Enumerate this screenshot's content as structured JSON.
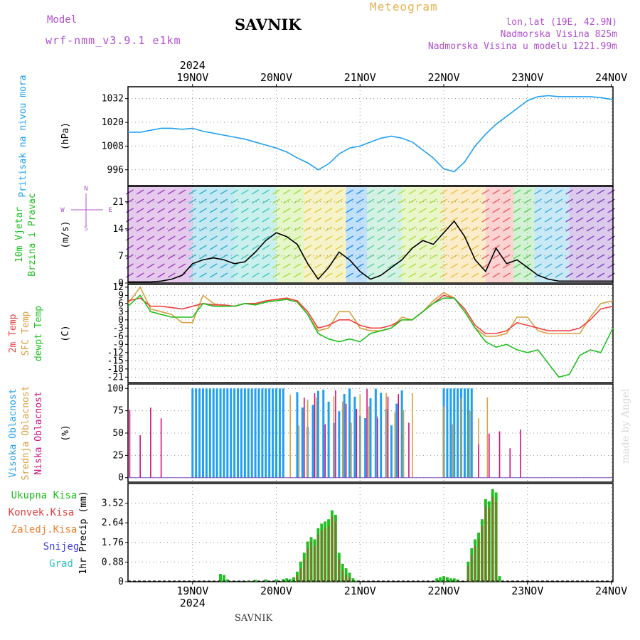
{
  "header": {
    "model_label": "Model",
    "model_name": "wrf-nmm_v3.9.1  e1km",
    "station": "SAVNIK",
    "title": "Meteogram",
    "lonlat": "lon,lat (19E, 42.9N)",
    "altitude": "Nadmorska Visina 825m",
    "model_altitude": "Nadmorska Visina u modelu 1221.99m",
    "footer_station": "SAVNIK",
    "credit": "made by Angel"
  },
  "colors": {
    "purple": "#b050d0",
    "orange": "#e8b050",
    "pressure": "#20a0f0",
    "temp2m": "#f04040",
    "sfc": "#d8a040",
    "dew": "#20c020",
    "high_cloud": "#20a0f0",
    "mid_cloud": "#d8a040",
    "low_cloud": "#d01080",
    "total_precip": "#20c020",
    "conv_precip": "#e04040",
    "frz_precip": "#f08030",
    "snow": "#4040e0",
    "hail": "#30c0c0"
  },
  "chart_data": {
    "type": "line",
    "x_axis": {
      "top_year": "2024",
      "bottom_year": "2024",
      "days": [
        "19NOV",
        "20NOV",
        "21NOV",
        "22NOV",
        "23NOV",
        "24NOV"
      ],
      "range_hours": [
        -6.5,
        132.5
      ],
      "tick_hours": [
        12,
        36,
        60,
        84,
        108,
        132
      ]
    },
    "panels": [
      {
        "id": "pressure",
        "ylabel": "(hPa)",
        "side_label": [
          "Pritisak na nivou mora"
        ],
        "ylim": [
          988,
          1038
        ],
        "yticks": [
          996,
          1008,
          1020,
          1032
        ],
        "series": [
          {
            "name": "pressure",
            "x": [
              -6.5,
              -3,
              0,
              3,
              6,
              9,
              12,
              15,
              18,
              21,
              24,
              27,
              30,
              33,
              36,
              39,
              42,
              45,
              48,
              51,
              54,
              57,
              60,
              63,
              66,
              69,
              72,
              75,
              78,
              81,
              84,
              87,
              90,
              93,
              96,
              99,
              102,
              105,
              108,
              111,
              114,
              117,
              120,
              123,
              126,
              129,
              132.5
            ],
            "y": [
              1015,
              1015,
              1016,
              1017,
              1017,
              1016.5,
              1017,
              1015.5,
              1014.5,
              1013.5,
              1012.5,
              1011.5,
              1010,
              1008.5,
              1007,
              1005,
              1002,
              999.5,
              996,
              999,
              1004,
              1007,
              1008,
              1010,
              1012,
              1013,
              1012,
              1010,
              1006,
              1002,
              996.5,
              995,
              1000,
              1008,
              1014,
              1019,
              1023,
              1027,
              1031,
              1033,
              1033.5,
              1033,
              1033,
              1033,
              1033,
              1032.5,
              1031.5
            ]
          }
        ]
      },
      {
        "id": "wind",
        "ylabel": "(m/s)",
        "side_label": [
          "10m Vjetar",
          "Brzina i Pravac"
        ],
        "compass": [
          "N",
          "E",
          "S",
          "W"
        ],
        "ylim": [
          0,
          25
        ],
        "yticks": [
          0,
          7,
          14,
          21
        ],
        "series": [
          {
            "name": "wind_speed",
            "x": [
              -6.5,
              -3,
              0,
              3,
              6,
              9,
              12,
              15,
              18,
              21,
              24,
              27,
              30,
              33,
              36,
              39,
              42,
              45,
              48,
              51,
              54,
              57,
              60,
              63,
              66,
              69,
              72,
              75,
              78,
              81,
              84,
              87,
              90,
              93,
              96,
              99,
              102,
              105,
              108,
              111,
              114,
              117,
              120,
              123,
              126,
              129,
              132.5
            ],
            "y": [
              0.3,
              0.3,
              0.3,
              0.5,
              1,
              2,
              5,
              6,
              6.5,
              6,
              5,
              5.5,
              8,
              11,
              13,
              12,
              10,
              5,
              1,
              4,
              8,
              6,
              3,
              1,
              2,
              4,
              6,
              9,
              11,
              10,
              13,
              16,
              12,
              6,
              3,
              9,
              5,
              6,
              4,
              2,
              1,
              0.5,
              0.5,
              0.5,
              0.5,
              0.5,
              0.5
            ]
          }
        ]
      },
      {
        "id": "temperature",
        "ylabel": "(C)",
        "side_label": [
          "2m Temp",
          "SFC Temp",
          "dewpt Temp"
        ],
        "ylim": [
          -23,
          13
        ],
        "yticks": [
          -21,
          -18,
          -15,
          -12,
          -9,
          -6,
          -3,
          0,
          3,
          6,
          9,
          12
        ],
        "series": [
          {
            "name": "2m",
            "x": [
              -6.5,
              -3,
              0,
              3,
              6,
              9,
              12,
              15,
              18,
              21,
              24,
              27,
              30,
              33,
              36,
              39,
              42,
              45,
              48,
              51,
              54,
              57,
              60,
              63,
              66,
              69,
              72,
              75,
              78,
              81,
              84,
              87,
              90,
              93,
              96,
              99,
              102,
              105,
              108,
              111,
              114,
              117,
              120,
              123,
              126,
              129,
              132.5
            ],
            "y": [
              7,
              8,
              5,
              5,
              4.5,
              4,
              5,
              6,
              5.5,
              5.5,
              5,
              6,
              6,
              7,
              7.5,
              8,
              7,
              3,
              -3,
              -2,
              0,
              0,
              -2,
              -3,
              -3,
              -2,
              0,
              0,
              3,
              6,
              9,
              8,
              4,
              -2,
              -5,
              -5,
              -4,
              -1,
              -2,
              -3,
              -4,
              -4,
              -4,
              -3,
              0,
              4,
              5
            ]
          },
          {
            "name": "sfc",
            "x": [
              -6.5,
              -3,
              0,
              3,
              6,
              9,
              12,
              15,
              18,
              21,
              24,
              27,
              30,
              33,
              36,
              39,
              42,
              45,
              48,
              51,
              54,
              57,
              60,
              63,
              66,
              69,
              72,
              75,
              78,
              81,
              84,
              87,
              90,
              93,
              96,
              99,
              102,
              105,
              108,
              111,
              114,
              117,
              120,
              123,
              126,
              129,
              132.5
            ],
            "y": [
              6,
              12,
              4,
              3,
              2,
              -1,
              -1,
              9,
              6,
              5,
              5,
              6,
              5.5,
              7,
              7.5,
              8,
              7,
              2,
              -4,
              -3,
              3,
              3,
              -3,
              -4,
              -4,
              -3,
              1,
              0,
              3,
              7,
              10,
              8,
              3,
              -3,
              -6,
              -6,
              -5,
              1,
              1,
              -4,
              -5,
              -5,
              -5,
              -5,
              1,
              6,
              7
            ]
          },
          {
            "name": "dewpoint",
            "x": [
              -6.5,
              -3,
              0,
              3,
              6,
              9,
              12,
              15,
              18,
              21,
              24,
              27,
              30,
              33,
              36,
              39,
              42,
              45,
              48,
              51,
              54,
              57,
              60,
              63,
              66,
              69,
              72,
              75,
              78,
              81,
              84,
              87,
              90,
              93,
              96,
              99,
              102,
              105,
              108,
              111,
              114,
              117,
              120,
              123,
              126,
              129,
              132.5
            ],
            "y": [
              5,
              9,
              3,
              2,
              1,
              1,
              1,
              6,
              5,
              5,
              5,
              6,
              5.5,
              6.5,
              7,
              7.5,
              6.5,
              2,
              -5,
              -7,
              -8,
              -7,
              -8,
              -5,
              -4,
              -3,
              0,
              0,
              3,
              6,
              8,
              8,
              3,
              -3,
              -8,
              -10,
              -9,
              -11,
              -12,
              -11,
              -16,
              -21,
              -20,
              -13,
              -11,
              -12,
              -3
            ]
          }
        ]
      },
      {
        "id": "clouds",
        "ylabel": "(%)",
        "side_label": [
          "Visoka Oblacnost",
          "Srednja Oblacnost",
          "Niska Oblacnost"
        ],
        "ylim": [
          -5,
          105
        ],
        "yticks": [
          0,
          25,
          50,
          75,
          100
        ],
        "bar_groups": [
          {
            "name": "high",
            "range": [
              12,
              38
            ],
            "value": 100
          },
          {
            "name": "high",
            "range": [
              84,
              92
            ],
            "value": 100
          },
          {
            "name": "high_sparse",
            "range": [
              42,
              72
            ],
            "value": 100
          },
          {
            "name": "mid",
            "range": [
              40,
              75
            ],
            "value": 95
          },
          {
            "name": "mid",
            "range": [
              84,
              98
            ],
            "value": 90
          },
          {
            "name": "low",
            "range": [
              -6,
              4
            ],
            "value": 80
          },
          {
            "name": "low",
            "range": [
              44,
              76
            ],
            "value": 100
          },
          {
            "name": "low",
            "range": [
              94,
              106
            ],
            "value": 55
          }
        ]
      },
      {
        "id": "precip",
        "ylabel": "1hr Precip (mm)",
        "side_label": [
          "Ukupna Kisa",
          "Konvek.Kisa",
          "Zaledj.Kisa",
          "Snijeg",
          "Grad"
        ],
        "ylim": [
          0,
          4.4
        ],
        "yticks": [
          0,
          0.88,
          1.76,
          2.64,
          3.52
        ],
        "bars": [
          {
            "x": 20,
            "total": 0.35,
            "conv": 0
          },
          {
            "x": 21,
            "total": 0.3,
            "conv": 0
          },
          {
            "x": 22,
            "total": 0.1,
            "conv": 0
          },
          {
            "x": 28,
            "total": 0.05,
            "conv": 0
          },
          {
            "x": 30,
            "total": 0.08,
            "conv": 0
          },
          {
            "x": 33,
            "total": 0.1,
            "conv": 0
          },
          {
            "x": 36,
            "total": 0.1,
            "conv": 0
          },
          {
            "x": 38,
            "total": 0.12,
            "conv": 0
          },
          {
            "x": 39,
            "total": 0.15,
            "conv": 0
          },
          {
            "x": 40,
            "total": 0.12,
            "conv": 0
          },
          {
            "x": 41,
            "total": 0.2,
            "conv": 0
          },
          {
            "x": 42,
            "total": 0.45,
            "conv": 0.3
          },
          {
            "x": 43,
            "total": 0.9,
            "conv": 0.6
          },
          {
            "x": 44,
            "total": 1.3,
            "conv": 1.0
          },
          {
            "x": 45,
            "total": 1.8,
            "conv": 1.5
          },
          {
            "x": 46,
            "total": 2.0,
            "conv": 1.8
          },
          {
            "x": 47,
            "total": 1.9,
            "conv": 1.6
          },
          {
            "x": 48,
            "total": 2.4,
            "conv": 2.1
          },
          {
            "x": 49,
            "total": 2.6,
            "conv": 2.3
          },
          {
            "x": 50,
            "total": 2.7,
            "conv": 2.4
          },
          {
            "x": 51,
            "total": 2.8,
            "conv": 2.5
          },
          {
            "x": 52,
            "total": 3.2,
            "conv": 2.9
          },
          {
            "x": 53,
            "total": 3.0,
            "conv": 2.7
          },
          {
            "x": 54,
            "total": 1.3,
            "conv": 1.0
          },
          {
            "x": 55,
            "total": 0.8,
            "conv": 0.5
          },
          {
            "x": 56,
            "total": 0.6,
            "conv": 0.3
          },
          {
            "x": 57,
            "total": 0.4,
            "conv": 0.2
          },
          {
            "x": 58,
            "total": 0.15,
            "conv": 0
          },
          {
            "x": 59,
            "total": 0.05,
            "conv": 0
          },
          {
            "x": 82,
            "total": 0.15,
            "conv": 0
          },
          {
            "x": 83,
            "total": 0.2,
            "conv": 0
          },
          {
            "x": 84,
            "total": 0.25,
            "conv": 0
          },
          {
            "x": 85,
            "total": 0.2,
            "conv": 0
          },
          {
            "x": 86,
            "total": 0.15,
            "conv": 0
          },
          {
            "x": 87,
            "total": 0.15,
            "conv": 0
          },
          {
            "x": 88,
            "total": 0.1,
            "conv": 0
          },
          {
            "x": 91,
            "total": 0.9,
            "conv": 0.7
          },
          {
            "x": 92,
            "total": 1.5,
            "conv": 1.2
          },
          {
            "x": 93,
            "total": 1.9,
            "conv": 1.6
          },
          {
            "x": 94,
            "total": 2.2,
            "conv": 1.9
          },
          {
            "x": 95,
            "total": 2.8,
            "conv": 2.5
          },
          {
            "x": 96,
            "total": 3.7,
            "conv": 3.4
          },
          {
            "x": 97,
            "total": 3.6,
            "conv": 3.3
          },
          {
            "x": 98,
            "total": 4.15,
            "conv": 3.8
          },
          {
            "x": 99,
            "total": 4.0,
            "conv": 3.6
          },
          {
            "x": 100,
            "total": 0.25,
            "conv": 0
          }
        ]
      }
    ]
  }
}
